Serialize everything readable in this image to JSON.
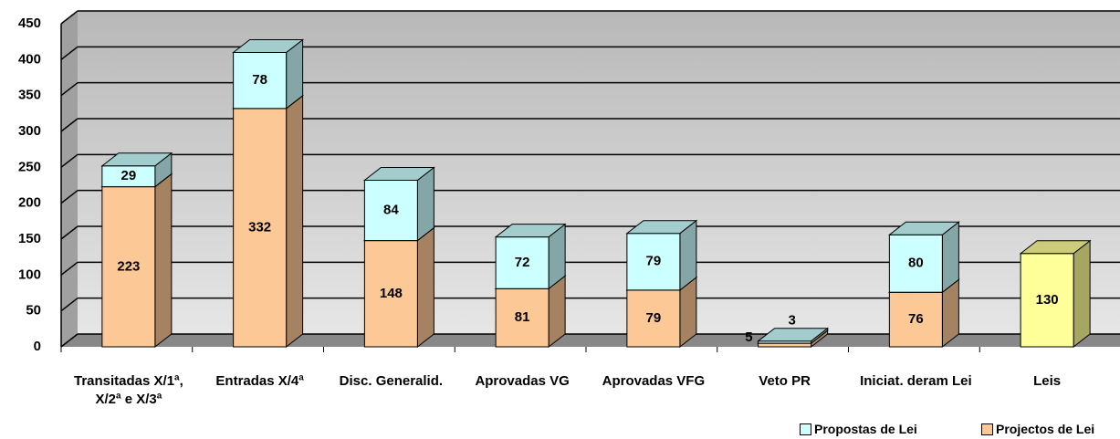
{
  "chart_data": {
    "type": "bar3d_stacked",
    "categories": [
      "Transitadas X/1ª, X/2ª e X/3ª",
      "Entradas X/4ª",
      "Disc. Generalid.",
      "Aprovadas VG",
      "Aprovadas VFG",
      "Veto PR",
      "Iniciat. deram Lei",
      "Leis"
    ],
    "series": [
      {
        "name": "Projectos de Lei",
        "color": "#fcc896",
        "values": [
          223,
          332,
          148,
          81,
          79,
          5,
          76,
          130
        ],
        "colors": [
          "#fcc896",
          "#fcc896",
          "#fcc896",
          "#fcc896",
          "#fcc896",
          "#fcc896",
          "#fcc896",
          "#ffff99"
        ]
      },
      {
        "name": "Propostas de Lei",
        "color": "#ccffff",
        "values": [
          29,
          78,
          84,
          72,
          79,
          3,
          80,
          null
        ]
      }
    ],
    "legend_order": [
      1,
      0
    ],
    "legend": "bottom-right",
    "ylim": [
      0,
      450
    ],
    "yticks": [
      0,
      50,
      100,
      150,
      200,
      250,
      300,
      350,
      400,
      450
    ],
    "grid": true
  }
}
